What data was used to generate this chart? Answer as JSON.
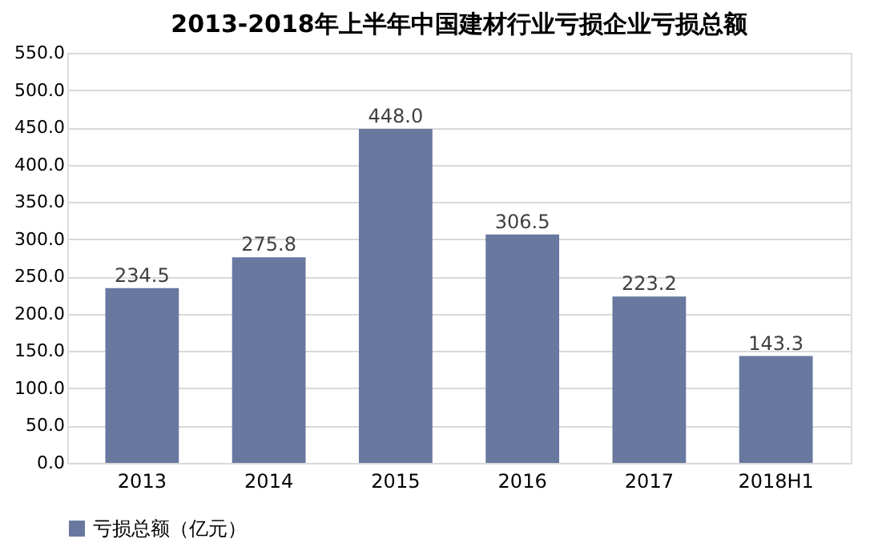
{
  "chart_data": {
    "type": "bar",
    "title": "2013-2018年上半年中国建材行业亏损企业亏损总额",
    "categories": [
      "2013",
      "2014",
      "2015",
      "2016",
      "2017",
      "2018H1"
    ],
    "series": [
      {
        "name": "亏损总额（亿元）",
        "color": "#68789f",
        "values": [
          234.5,
          275.8,
          448.0,
          306.5,
          223.2,
          143.3
        ],
        "value_labels": [
          "234.5",
          "275.8",
          "448.0",
          "306.5",
          "223.2",
          "143.3"
        ]
      }
    ],
    "ylim": [
      0,
      550
    ],
    "yticks": [
      {
        "value": 0,
        "label": "0.0"
      },
      {
        "value": 50,
        "label": "50.0"
      },
      {
        "value": 100,
        "label": "100.0"
      },
      {
        "value": 150,
        "label": "150.0"
      },
      {
        "value": 200,
        "label": "200.0"
      },
      {
        "value": 250,
        "label": "250.0"
      },
      {
        "value": 300,
        "label": "300.0"
      },
      {
        "value": 350,
        "label": "350.0"
      },
      {
        "value": 400,
        "label": "400.0"
      },
      {
        "value": 450,
        "label": "450.0"
      },
      {
        "value": 500,
        "label": "500.0"
      },
      {
        "value": 550,
        "label": "550.0"
      }
    ],
    "grid": "y",
    "legend": "bottom"
  }
}
